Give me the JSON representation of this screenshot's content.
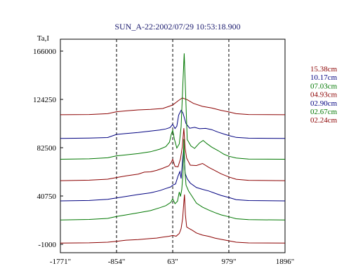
{
  "chart_data": {
    "type": "line",
    "title": "SUN_A-22:2002/07/29 10:53:18.900",
    "ylabel": "Ta,I",
    "xlabel": "",
    "x_ticks": [
      "-1771\"",
      "-854\"",
      "63\"",
      "979\"",
      "1896\""
    ],
    "x_tick_values": [
      -1771,
      -854,
      63,
      979,
      1896
    ],
    "y_ticks": [
      "166000",
      "124250",
      "82500",
      "40750",
      "-1000"
    ],
    "y_tick_values": [
      166000,
      124250,
      82500,
      40750,
      -1000
    ],
    "xlim": [
      -1771,
      1896
    ],
    "ylim": [
      -1000,
      166000
    ],
    "dashed_vlines": [
      -854,
      63,
      979
    ],
    "grid": false,
    "legend_position": "right",
    "series": [
      {
        "name": "15.38cm",
        "color": "#8b0000",
        "baseline": 111000,
        "points": [
          [
            -1771,
            0
          ],
          [
            -1300,
            200
          ],
          [
            -1000,
            900
          ],
          [
            -854,
            2600
          ],
          [
            -700,
            3300
          ],
          [
            -500,
            4200
          ],
          [
            -300,
            4600
          ],
          [
            -100,
            5400
          ],
          [
            0,
            7200
          ],
          [
            63,
            8400
          ],
          [
            150,
            12000
          ],
          [
            220,
            14500
          ],
          [
            300,
            13000
          ],
          [
            400,
            9800
          ],
          [
            550,
            7200
          ],
          [
            700,
            5800
          ],
          [
            850,
            3800
          ],
          [
            979,
            2400
          ],
          [
            1100,
            900
          ],
          [
            1300,
            200
          ],
          [
            1896,
            0
          ]
        ]
      },
      {
        "name": "10.17cm",
        "color": "#000080",
        "baseline": 90500,
        "points": [
          [
            -1771,
            0
          ],
          [
            -1300,
            300
          ],
          [
            -1000,
            800
          ],
          [
            -854,
            3500
          ],
          [
            -700,
            4200
          ],
          [
            -500,
            5100
          ],
          [
            -300,
            6400
          ],
          [
            -150,
            7300
          ],
          [
            -50,
            8200
          ],
          [
            20,
            9400
          ],
          [
            63,
            12300
          ],
          [
            100,
            8600
          ],
          [
            130,
            10600
          ],
          [
            160,
            20200
          ],
          [
            200,
            24300
          ],
          [
            230,
            22000
          ],
          [
            280,
            12800
          ],
          [
            340,
            8800
          ],
          [
            420,
            9600
          ],
          [
            500,
            8400
          ],
          [
            600,
            8700
          ],
          [
            700,
            7600
          ],
          [
            800,
            5500
          ],
          [
            900,
            3800
          ],
          [
            979,
            2500
          ],
          [
            1100,
            900
          ],
          [
            1300,
            200
          ],
          [
            1896,
            0
          ]
        ]
      },
      {
        "name": "07.03cm",
        "color": "#007700",
        "baseline": 72500,
        "points": [
          [
            -1771,
            0
          ],
          [
            -1300,
            400
          ],
          [
            -1000,
            1300
          ],
          [
            -854,
            3000
          ],
          [
            -700,
            3800
          ],
          [
            -500,
            4900
          ],
          [
            -300,
            6500
          ],
          [
            -150,
            8700
          ],
          [
            -50,
            10900
          ],
          [
            10,
            14800
          ],
          [
            40,
            21600
          ],
          [
            63,
            25000
          ],
          [
            90,
            17500
          ],
          [
            130,
            9700
          ],
          [
            170,
            13300
          ],
          [
            200,
            28200
          ],
          [
            230,
            66500
          ],
          [
            250,
            91500
          ],
          [
            270,
            62000
          ],
          [
            300,
            17000
          ],
          [
            360,
            11500
          ],
          [
            420,
            9400
          ],
          [
            500,
            14100
          ],
          [
            560,
            16300
          ],
          [
            620,
            13500
          ],
          [
            700,
            10500
          ],
          [
            800,
            7600
          ],
          [
            900,
            4300
          ],
          [
            979,
            2600
          ],
          [
            1100,
            1100
          ],
          [
            1300,
            200
          ],
          [
            1896,
            0
          ]
        ]
      },
      {
        "name": "04.93cm",
        "color": "#8b0000",
        "baseline": 54000,
        "points": [
          [
            -1771,
            0
          ],
          [
            -1300,
            400
          ],
          [
            -1000,
            1300
          ],
          [
            -854,
            2700
          ],
          [
            -700,
            4200
          ],
          [
            -500,
            5700
          ],
          [
            -400,
            7400
          ],
          [
            -300,
            7600
          ],
          [
            -200,
            8900
          ],
          [
            -100,
            10700
          ],
          [
            0,
            12800
          ],
          [
            40,
            15800
          ],
          [
            63,
            18500
          ],
          [
            100,
            12300
          ],
          [
            150,
            12000
          ],
          [
            190,
            18900
          ],
          [
            220,
            29300
          ],
          [
            245,
            45400
          ],
          [
            265,
            28000
          ],
          [
            290,
            19400
          ],
          [
            350,
            13400
          ],
          [
            450,
            13100
          ],
          [
            550,
            14900
          ],
          [
            650,
            11500
          ],
          [
            750,
            8800
          ],
          [
            850,
            6000
          ],
          [
            979,
            3200
          ],
          [
            1100,
            1200
          ],
          [
            1300,
            300
          ],
          [
            1896,
            0
          ]
        ]
      },
      {
        "name": "02.90cm",
        "color": "#000080",
        "baseline": 36500,
        "points": [
          [
            -1771,
            0
          ],
          [
            -1300,
            400
          ],
          [
            -1000,
            1400
          ],
          [
            -854,
            2600
          ],
          [
            -700,
            3900
          ],
          [
            -500,
            5500
          ],
          [
            -300,
            7000
          ],
          [
            -150,
            8900
          ],
          [
            -50,
            10700
          ],
          [
            30,
            12100
          ],
          [
            63,
            13600
          ],
          [
            110,
            14700
          ],
          [
            150,
            21500
          ],
          [
            180,
            25400
          ],
          [
            200,
            19300
          ],
          [
            225,
            36200
          ],
          [
            245,
            46000
          ],
          [
            265,
            23800
          ],
          [
            300,
            19100
          ],
          [
            350,
            15400
          ],
          [
            450,
            11600
          ],
          [
            550,
            10000
          ],
          [
            650,
            8600
          ],
          [
            750,
            6700
          ],
          [
            850,
            4800
          ],
          [
            979,
            3000
          ],
          [
            1100,
            1100
          ],
          [
            1300,
            300
          ],
          [
            1896,
            0
          ]
        ]
      },
      {
        "name": "02.67cm",
        "color": "#007700",
        "baseline": 20000,
        "points": [
          [
            -1771,
            0
          ],
          [
            -1300,
            500
          ],
          [
            -1000,
            1400
          ],
          [
            -854,
            3000
          ],
          [
            -700,
            4400
          ],
          [
            -500,
            6200
          ],
          [
            -300,
            8100
          ],
          [
            -150,
            10600
          ],
          [
            -50,
            12400
          ],
          [
            30,
            15200
          ],
          [
            63,
            18400
          ],
          [
            100,
            14100
          ],
          [
            140,
            16200
          ],
          [
            170,
            24200
          ],
          [
            190,
            20400
          ],
          [
            210,
            26200
          ],
          [
            230,
            39800
          ],
          [
            245,
            70000
          ],
          [
            260,
            44300
          ],
          [
            280,
            30200
          ],
          [
            320,
            25200
          ],
          [
            380,
            20400
          ],
          [
            450,
            14600
          ],
          [
            550,
            11100
          ],
          [
            650,
            8600
          ],
          [
            750,
            6400
          ],
          [
            850,
            4500
          ],
          [
            979,
            2800
          ],
          [
            1100,
            1100
          ],
          [
            1300,
            300
          ],
          [
            1896,
            0
          ]
        ]
      },
      {
        "name": "02.24cm",
        "color": "#8b0000",
        "baseline": 0,
        "points": [
          [
            -1771,
            0
          ],
          [
            -1300,
            300
          ],
          [
            -1000,
            800
          ],
          [
            -854,
            1600
          ],
          [
            -700,
            2600
          ],
          [
            -500,
            3100
          ],
          [
            -300,
            4000
          ],
          [
            -200,
            4400
          ],
          [
            -100,
            5200
          ],
          [
            0,
            5900
          ],
          [
            63,
            6600
          ],
          [
            120,
            6000
          ],
          [
            170,
            8400
          ],
          [
            200,
            12600
          ],
          [
            225,
            21400
          ],
          [
            240,
            32500
          ],
          [
            255,
            42000
          ],
          [
            270,
            24600
          ],
          [
            290,
            14000
          ],
          [
            320,
            13000
          ],
          [
            380,
            11200
          ],
          [
            450,
            8800
          ],
          [
            550,
            6900
          ],
          [
            650,
            5900
          ],
          [
            750,
            4400
          ],
          [
            850,
            3300
          ],
          [
            979,
            2000
          ],
          [
            1100,
            800
          ],
          [
            1300,
            200
          ],
          [
            1896,
            0
          ]
        ]
      }
    ]
  }
}
